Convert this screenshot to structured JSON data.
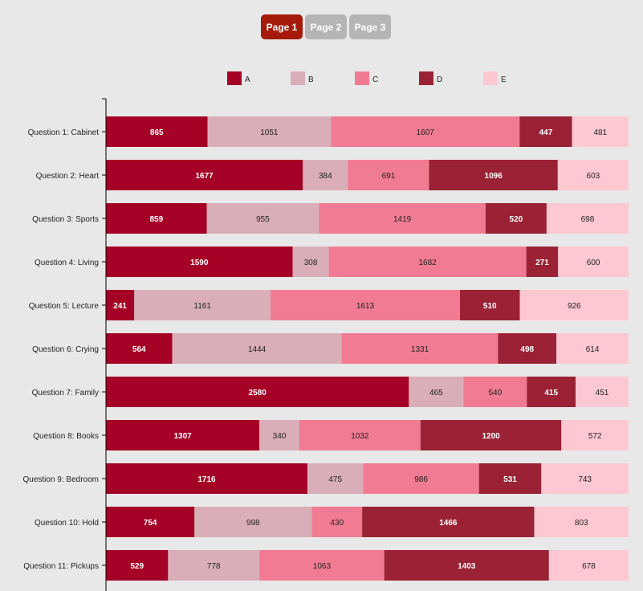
{
  "pager": {
    "pages": [
      {
        "label": "Page 1",
        "active": true
      },
      {
        "label": "Page 2",
        "active": false
      },
      {
        "label": "Page 3",
        "active": false
      }
    ],
    "active_color": "#a61a0b",
    "inactive_color": "#b5b5b5"
  },
  "chart_data": {
    "type": "bar",
    "orientation": "horizontal",
    "stacked": true,
    "legend_placement": "top",
    "grid": false,
    "categories": [
      "Question 1: Cabinet",
      "Question 2: Heart",
      "Question 3: Sports",
      "Question 4: Living",
      "Question 5: Lecture",
      "Question 6: Crying",
      "Question 7: Family",
      "Question 8: Books",
      "Question 9: Bedroom",
      "Question 10: Hold",
      "Question 11: Pickups"
    ],
    "series": [
      {
        "name": "A",
        "color": "#a50026",
        "label_color": "#ffffff",
        "label_bold": true,
        "values": [
          865,
          1677,
          859,
          1590,
          241,
          564,
          2580,
          1307,
          1716,
          754,
          529
        ]
      },
      {
        "name": "B",
        "color": "#d9aeb8",
        "label_color": "#222222",
        "label_bold": false,
        "values": [
          1051,
          384,
          955,
          308,
          1161,
          1444,
          465,
          340,
          475,
          998,
          778
        ]
      },
      {
        "name": "C",
        "color": "#f07b92",
        "label_color": "#222222",
        "label_bold": false,
        "values": [
          1607,
          691,
          1419,
          1682,
          1613,
          1331,
          540,
          1032,
          986,
          430,
          1063
        ]
      },
      {
        "name": "D",
        "color": "#9b2235",
        "label_color": "#ffffff",
        "label_bold": true,
        "values": [
          447,
          1096,
          520,
          271,
          510,
          498,
          415,
          1200,
          531,
          1466,
          1403
        ]
      },
      {
        "name": "E",
        "color": "#fec8d2",
        "label_color": "#222222",
        "label_bold": false,
        "values": [
          481,
          603,
          698,
          600,
          926,
          614,
          451,
          572,
          743,
          803,
          678
        ]
      }
    ]
  }
}
